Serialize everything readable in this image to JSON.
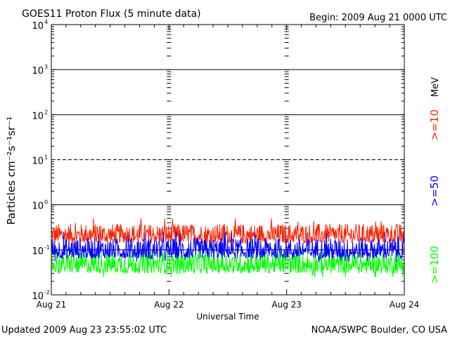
{
  "header": {
    "title": "GOES11 Proton Flux (5 minute data)",
    "begin": "Begin: 2009 Aug 21 0000 UTC"
  },
  "footer": {
    "updated": "Updated 2009 Aug 23 23:55:02 UTC",
    "credit": "NOAA/SWPC Boulder, CO USA"
  },
  "chart_data": {
    "type": "line",
    "title": "GOES11 Proton Flux (5 minute data)",
    "xlabel": "Universal Time",
    "ylabel": "Particles cm⁻²s⁻¹sr⁻¹",
    "y_scale": "log",
    "ylim": [
      0.01,
      10000
    ],
    "y_ticks": [
      {
        "value": 0.01,
        "base": "10",
        "exp": "-2"
      },
      {
        "value": 0.1,
        "base": "10",
        "exp": "-1"
      },
      {
        "value": 1,
        "base": "10",
        "exp": "0"
      },
      {
        "value": 10,
        "base": "10",
        "exp": "1"
      },
      {
        "value": 100,
        "base": "10",
        "exp": "2"
      },
      {
        "value": 1000,
        "base": "10",
        "exp": "3"
      },
      {
        "value": 10000,
        "base": "10",
        "exp": "4"
      }
    ],
    "x_ticks": [
      "Aug 21",
      "Aug 22",
      "Aug 23",
      "Aug 24"
    ],
    "xlim_days": [
      0,
      3
    ],
    "grid": true,
    "legend_unit": "MeV",
    "legend_position": "right",
    "series": [
      {
        "name": ">=10",
        "color": "#ff2200",
        "mean": 0.2,
        "min": 0.12,
        "max": 0.5
      },
      {
        "name": ">=50",
        "color": "#0000ff",
        "mean": 0.09,
        "min": 0.055,
        "max": 0.25
      },
      {
        "name": ">=100",
        "color": "#00ff00",
        "mean": 0.045,
        "min": 0.025,
        "max": 0.12
      }
    ]
  }
}
